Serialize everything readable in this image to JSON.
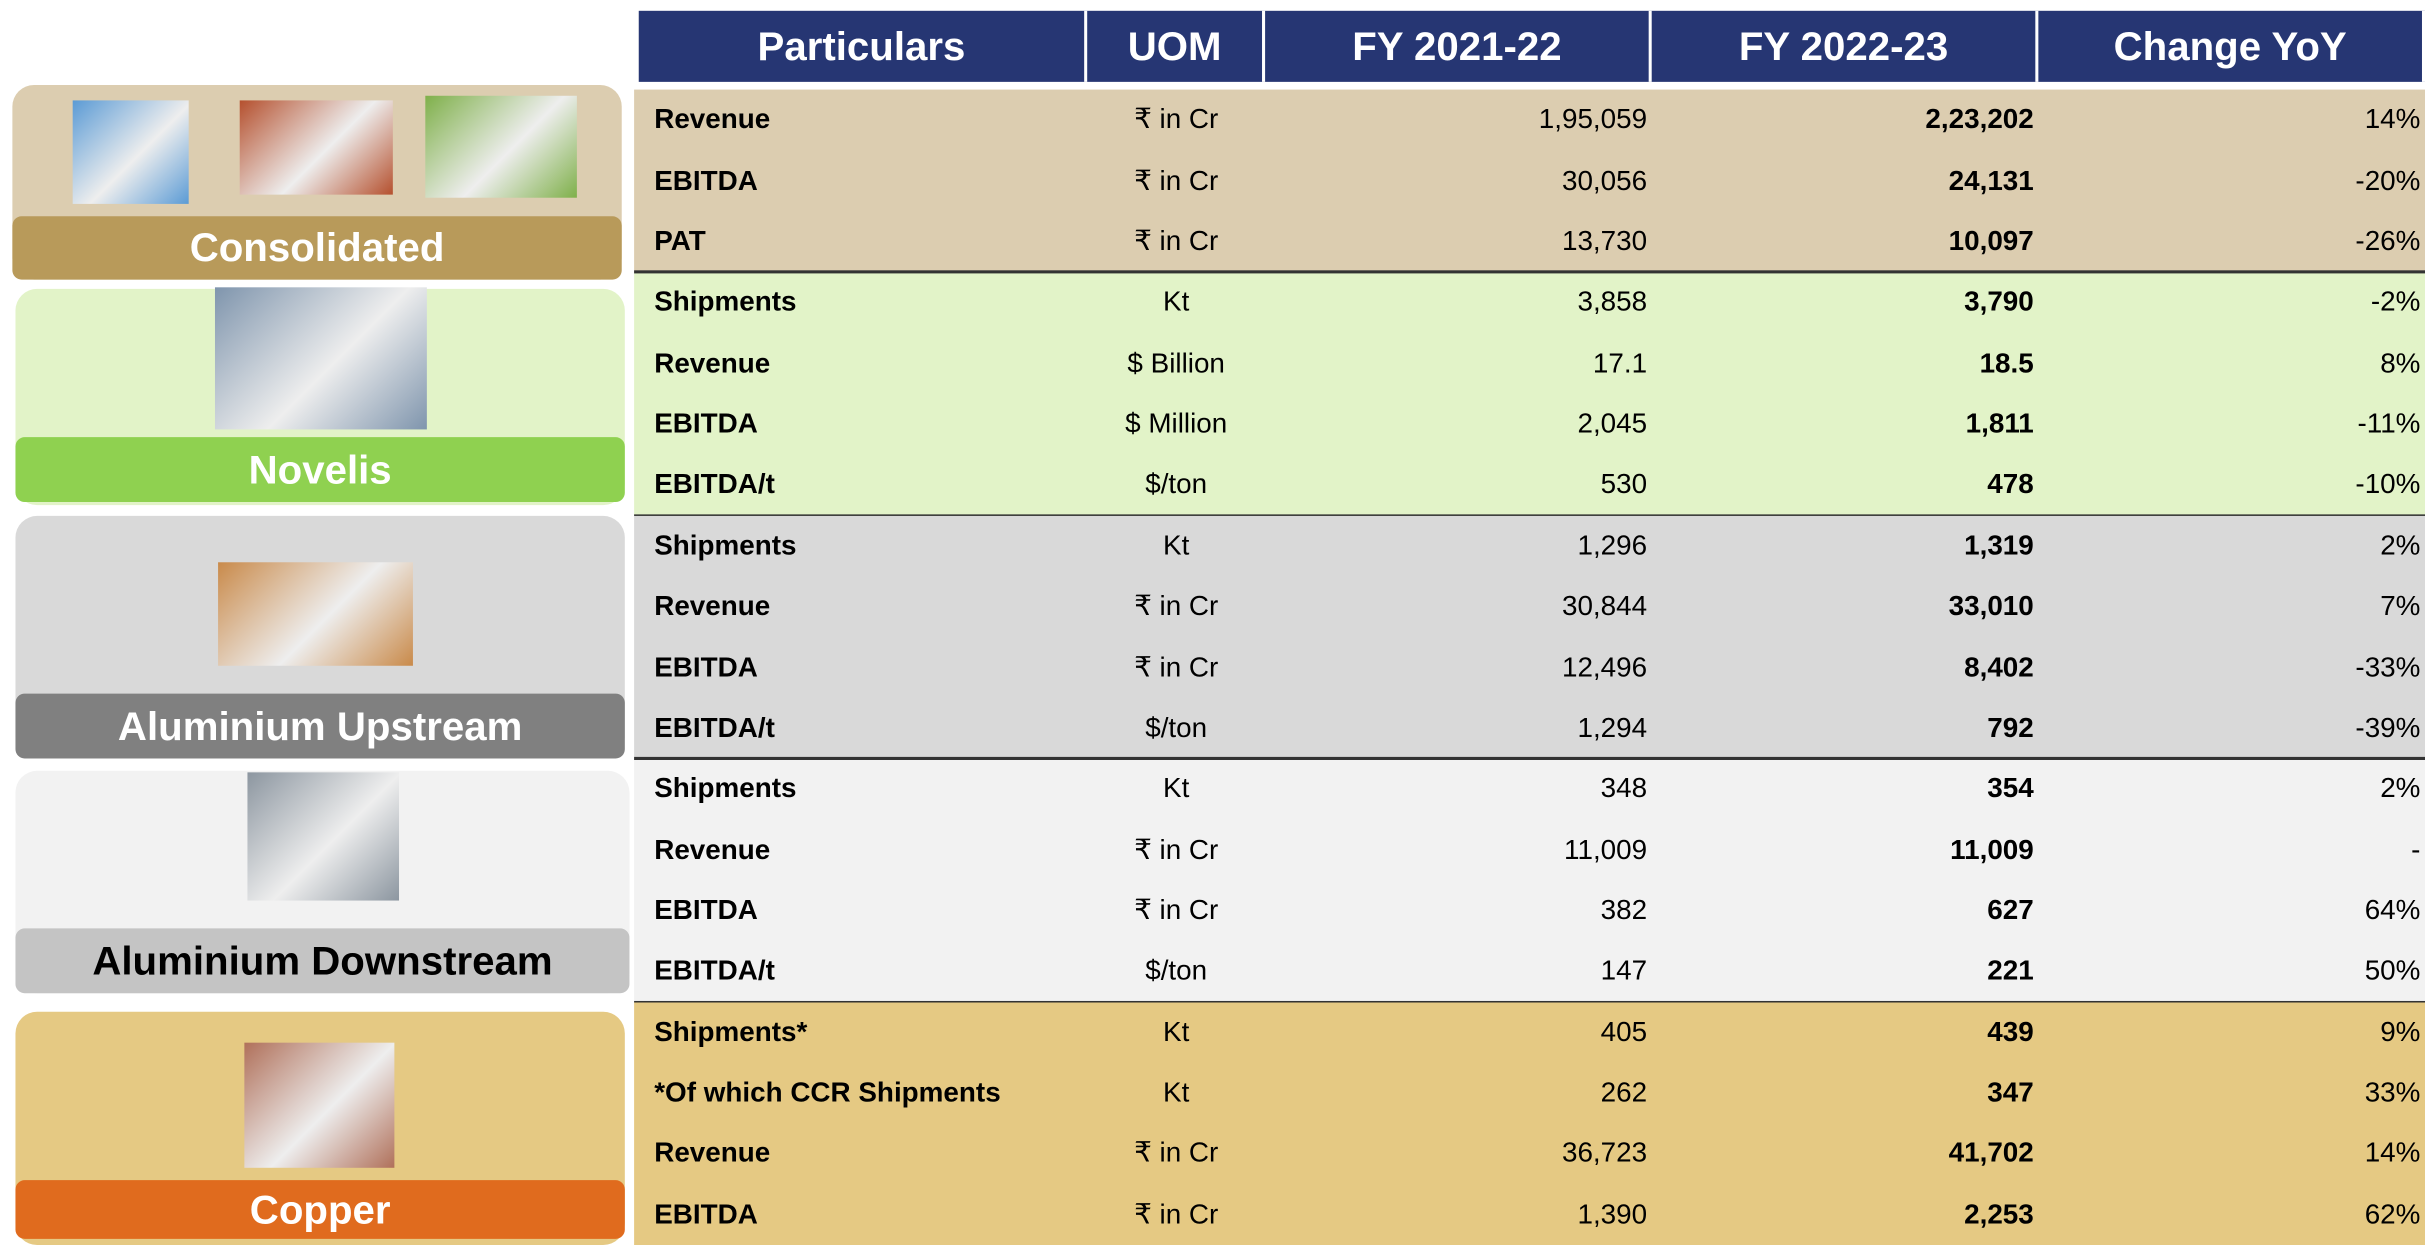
{
  "header": {
    "columns": [
      "Particulars",
      "UOM",
      "FY 2021-22",
      "FY 2022-23",
      "Change YoY"
    ]
  },
  "sections": [
    {
      "label": "Consolidated",
      "rows": [
        [
          "Revenue",
          "₹ in Cr",
          "1,95,059",
          "2,23,202",
          "14%"
        ],
        [
          "EBITDA",
          "₹ in Cr",
          "30,056",
          "24,131",
          "-20%"
        ],
        [
          "PAT",
          "₹ in Cr",
          "13,730",
          "10,097",
          "-26%"
        ]
      ]
    },
    {
      "label": "Novelis",
      "rows": [
        [
          "Shipments",
          "Kt",
          "3,858",
          "3,790",
          "-2%"
        ],
        [
          "Revenue",
          "$ Billion",
          "17.1",
          "18.5",
          "8%"
        ],
        [
          "EBITDA",
          "$ Million",
          "2,045",
          "1,811",
          "-11%"
        ],
        [
          "EBITDA/t",
          "$/ton",
          "530",
          "478",
          "-10%"
        ]
      ]
    },
    {
      "label": "Aluminium Upstream",
      "rows": [
        [
          "Shipments",
          "Kt",
          "1,296",
          "1,319",
          "2%"
        ],
        [
          "Revenue",
          "₹ in Cr",
          "30,844",
          "33,010",
          "7%"
        ],
        [
          "EBITDA",
          "₹ in Cr",
          "12,496",
          "8,402",
          "-33%"
        ],
        [
          "EBITDA/t",
          "$/ton",
          "1,294",
          "792",
          "-39%"
        ]
      ]
    },
    {
      "label": "Aluminium Downstream",
      "rows": [
        [
          "Shipments",
          "Kt",
          "348",
          "354",
          "2%"
        ],
        [
          "Revenue",
          "₹ in Cr",
          "11,009",
          "11,009",
          "-"
        ],
        [
          "EBITDA",
          "₹ in Cr",
          "382",
          "627",
          "64%"
        ],
        [
          "EBITDA/t",
          "$/ton",
          "147",
          "221",
          "50%"
        ]
      ]
    },
    {
      "label": "Copper",
      "rows": [
        [
          "Shipments*",
          "Kt",
          "405",
          "439",
          "9%"
        ],
        [
          "*Of which CCR Shipments",
          "Kt",
          "262",
          "347",
          "33%"
        ],
        [
          "Revenue",
          "₹ in Cr",
          "36,723",
          "41,702",
          "14%"
        ],
        [
          "EBITDA",
          "₹ in Cr",
          "1,390",
          "2,253",
          "62%"
        ]
      ]
    }
  ]
}
